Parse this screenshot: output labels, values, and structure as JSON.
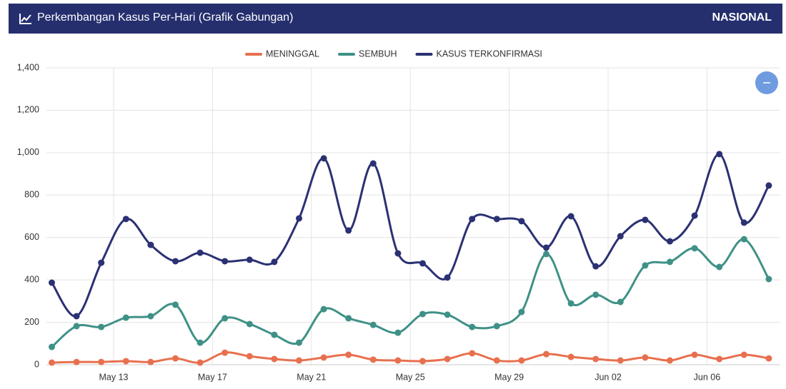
{
  "header": {
    "title": "Perkembangan Kasus Per-Hari (Grafik Gabungan)",
    "region": "NASIONAL"
  },
  "chart_data": {
    "type": "line",
    "x": [
      "May 10",
      "May 11",
      "May 12",
      "May 13",
      "May 14",
      "May 15",
      "May 16",
      "May 17",
      "May 18",
      "May 19",
      "May 20",
      "May 21",
      "May 22",
      "May 23",
      "May 24",
      "May 25",
      "May 26",
      "May 27",
      "May 28",
      "May 29",
      "May 30",
      "May 31",
      "Jun 01",
      "Jun 02",
      "Jun 03",
      "Jun 04",
      "Jun 05",
      "Jun 06",
      "Jun 07",
      "Jun 08"
    ],
    "xticks": [
      "May 13",
      "May 17",
      "May 21",
      "May 25",
      "May 29",
      "Jun 02",
      "Jun 06"
    ],
    "ylim": [
      0,
      1400
    ],
    "yticks": [
      0,
      200,
      400,
      600,
      800,
      {
        "value": 1000,
        "label": "1,000"
      },
      {
        "value": 1200,
        "label": "1,200"
      },
      {
        "value": 1400,
        "label": "1,400"
      }
    ],
    "grid": true,
    "series": [
      {
        "name": "MENINGGAL",
        "color": "#e8704f",
        "values": [
          10,
          13,
          13,
          17,
          13,
          30,
          10,
          57,
          40,
          27,
          20,
          34,
          47,
          24,
          20,
          17,
          27,
          54,
          20,
          20,
          50,
          37,
          27,
          20,
          34,
          20,
          47,
          27,
          47,
          30
        ]
      },
      {
        "name": "SEMBUH",
        "color": "#3f9187",
        "values": [
          84,
          182,
          178,
          222,
          229,
          283,
          104,
          219,
          192,
          141,
          104,
          262,
          219,
          188,
          151,
          239,
          236,
          178,
          182,
          249,
          522,
          289,
          330,
          296,
          468,
          485,
          549,
          461,
          592,
          404
        ]
      },
      {
        "name": "KASUS TERKONFIRMASI",
        "color": "#2b3173",
        "values": [
          387,
          229,
          481,
          687,
          565,
          488,
          528,
          488,
          495,
          485,
          690,
          973,
          633,
          949,
          525,
          478,
          411,
          687,
          687,
          677,
          552,
          700,
          464,
          606,
          683,
          582,
          703,
          993,
          670,
          845
        ]
      }
    ]
  }
}
